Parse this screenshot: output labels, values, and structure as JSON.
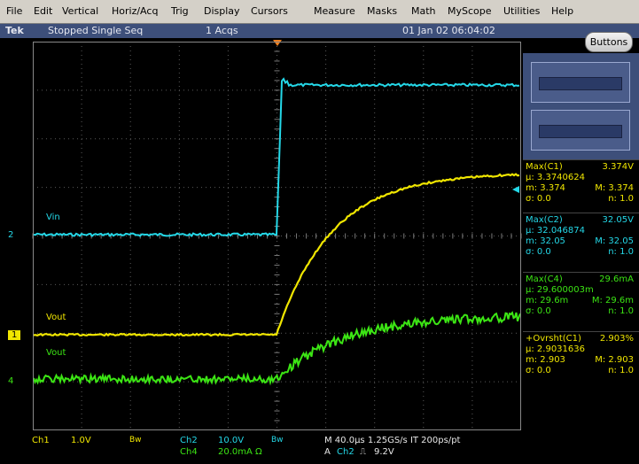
{
  "menu": [
    "File",
    "Edit",
    "Vertical",
    "Horiz/Acq",
    "Trig",
    "Display",
    "Cursors",
    "Measure",
    "Masks",
    "Math",
    "MyScope",
    "Utilities",
    "Help"
  ],
  "status": {
    "brand": "Tek",
    "state": "Stopped  Single Seq",
    "acqs": "1 Acqs",
    "datetime": "01 Jan 02 06:04:02"
  },
  "buttons_label": "Buttons",
  "trace_labels": {
    "vin": "Vin",
    "vout_yellow": "Vout",
    "vout_green": "Vout"
  },
  "markers": {
    "ch2": "2",
    "ch1": "1",
    "ch4": "4"
  },
  "measurements": [
    {
      "title": "Max(C1)",
      "value": "3.374V",
      "mu": "μ: 3.3740624",
      "m": "m: 3.374",
      "M": "M: 3.374",
      "sigma": "σ: 0.0",
      "n": "n: 1.0",
      "color": "#f0e600"
    },
    {
      "title": "Max(C2)",
      "value": "32.05V",
      "mu": "μ: 32.046874",
      "m": "m: 32.05",
      "M": "M: 32.05",
      "sigma": "σ: 0.0",
      "n": "n: 1.0",
      "color": "#24d8e8"
    },
    {
      "title": "Max(C4)",
      "value": "29.6mA",
      "mu": "μ: 29.600003m",
      "m": "m: 29.6m",
      "M": "M: 29.6m",
      "sigma": "σ: 0.0",
      "n": "n: 1.0",
      "color": "#3ce614"
    },
    {
      "title": "+Ovrsht(C1)",
      "value": "2.903%",
      "mu": "μ: 2.9031636",
      "m": "m: 2.903",
      "M": "M: 2.903",
      "sigma": "σ: 0.0",
      "n": "n: 1.0",
      "color": "#f0e600"
    }
  ],
  "bottom": {
    "ch1": "Ch1",
    "ch1_scale": "1.0V",
    "ch1_bw": "Bw",
    "ch2": "Ch2",
    "ch2_scale": "10.0V",
    "ch2_bw": "Bw",
    "ch4": "Ch4",
    "ch4_scale": "20.0mA  Ω",
    "horiz": "M 40.0μs 1.25GS/s   IT 200ps/pt",
    "trig_a": "A",
    "trig_ch": "Ch2",
    "trig_slope": "⎍",
    "trig_level": "9.2V"
  },
  "colors": {
    "ch1": "#f0e600",
    "ch2": "#24d8e8",
    "ch4": "#3ce614",
    "status_bg": "#3d4f7a",
    "menu_bg": "#d4d0c8"
  }
}
